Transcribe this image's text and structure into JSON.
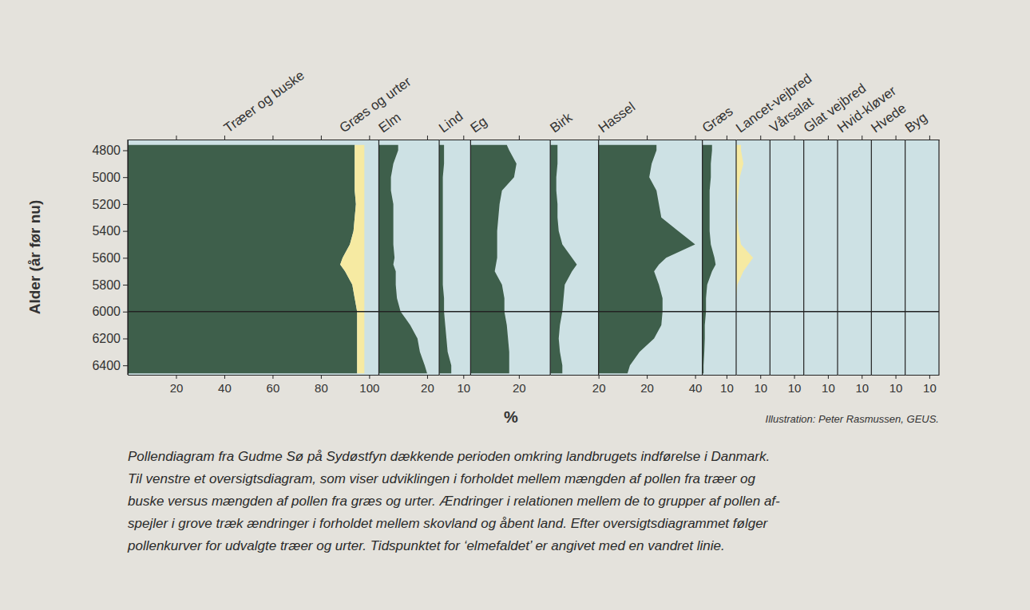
{
  "chart_data": {
    "type": "area",
    "y_label": "Alder (år før nu)",
    "x_label": "%",
    "ylim": [
      4720,
      6470
    ],
    "yticks": [
      4800,
      5000,
      5200,
      5400,
      5600,
      5800,
      6000,
      6200,
      6400
    ],
    "y": [
      4760,
      4800,
      4900,
      5000,
      5100,
      5200,
      5300,
      5400,
      5500,
      5600,
      5650,
      5700,
      5800,
      5900,
      6000,
      6100,
      6200,
      6300,
      6400,
      6460
    ],
    "hline": 6000,
    "credit": "Illustration: Peter Rasmussen, GEUS.",
    "caption": [
      "Pollendiagram fra Gudme Sø på Sydøstfyn dækkende perioden omkring landbrugets indførelse i Danmark.",
      "Til venstre et oversigtsdiagram, som viser udviklingen i forholdet mellem mængden af pollen fra træer og",
      "buske versus mængden af pollen fra græs og urter. Ændringer i relationen mellem de to grupper af pollen af-",
      "spejler i grove træk ændringer i forholdet mellem skovland og åbent land. Efter oversigtsdiagrammet følger",
      "pollenkurver for udvalgte træer og urter. Tidspunktet for ‘elmefaldet’ er angivet med en vandret linie."
    ],
    "panels": [
      {
        "xlim": [
          0,
          104
        ],
        "xticks": [
          20,
          40,
          60,
          80,
          100
        ],
        "stacked": true,
        "series": [
          {
            "name": "Træer og buske",
            "color": "#3e5f4b",
            "values": [
              94,
              94,
              94,
              94,
              94,
              94.5,
              94,
              93.5,
              92,
              89,
              88,
              90,
              93,
              94,
              95,
              95,
              95,
              95,
              95,
              95
            ]
          },
          {
            "name": "Græs og urter",
            "color": "#f6eaa2",
            "values": [
              4,
              4,
              4,
              4,
              4,
              3.5,
              4,
              4.5,
              6,
              9,
              10,
              8,
              5,
              4,
              3,
              3,
              3,
              3,
              3,
              3
            ]
          }
        ]
      },
      {
        "xlim": [
          0,
          25
        ],
        "xticks": [
          20
        ],
        "series": [
          {
            "name": "Elm",
            "color": "#3e5f4b",
            "values": [
              8,
              8,
              6,
              5,
              5,
              6,
              6,
              6,
              6,
              6.5,
              6,
              7,
              7,
              7.5,
              9,
              13,
              16,
              17,
              19,
              20
            ]
          }
        ]
      },
      {
        "xlim": [
          0,
          13
        ],
        "xticks": [
          10
        ],
        "series": [
          {
            "name": "Lind",
            "color": "#3e5f4b",
            "values": [
              2,
              2,
              2,
              1.5,
              1.5,
              1.5,
              1.5,
              1.5,
              1.5,
              1.5,
              1.5,
              1.5,
              1.5,
              2,
              2,
              2.5,
              3,
              3.5,
              5,
              5
            ]
          }
        ]
      },
      {
        "xlim": [
          0,
          33
        ],
        "xticks": [
          20
        ],
        "series": [
          {
            "name": "Eg",
            "color": "#3e5f4b",
            "values": [
              15,
              16,
              19,
              18,
              13,
              12,
              11.5,
              11,
              11,
              11,
              10.5,
              10,
              13,
              14,
              14,
              15,
              15.5,
              16,
              16,
              16
            ]
          }
        ]
      },
      {
        "xlim": [
          0,
          20
        ],
        "xticks": [
          20
        ],
        "series": [
          {
            "name": "Birk",
            "color": "#3e5f4b",
            "values": [
              3,
              3,
              3,
              2.5,
              2.5,
              3,
              3,
              3.5,
              5,
              9,
              11,
              9,
              6,
              5.5,
              5,
              4,
              3.5,
              4,
              5,
              5
            ]
          }
        ]
      },
      {
        "xlim": [
          0,
          43
        ],
        "xticks": [
          20,
          40
        ],
        "series": [
          {
            "name": "Hassel",
            "color": "#3e5f4b",
            "values": [
              24,
              24,
              22,
              21,
              24,
              25,
              26,
              33,
              40,
              28,
              25,
              23,
              25,
              26.5,
              26.5,
              26,
              23,
              17,
              13,
              12
            ]
          }
        ]
      },
      {
        "xlim": [
          0,
          14
        ],
        "xticks": [
          10
        ],
        "series": [
          {
            "name": "Græs",
            "color": "#3e5f4b",
            "values": [
              4,
              4,
              3.5,
              3.5,
              3,
              3,
              3,
              3,
              3.5,
              5,
              5.5,
              4,
              2,
              1.5,
              1.5,
              1,
              1,
              0.8,
              0.5,
              0.5
            ]
          }
        ]
      },
      {
        "xlim": [
          0,
          14
        ],
        "xticks": [
          10
        ],
        "series": [
          {
            "name": "Lancet-vejbred",
            "color": "#f6eaa2",
            "values": [
              2,
              2,
              3,
              1.5,
              1,
              0.5,
              0.5,
              1,
              2,
              7,
              5,
              3,
              0.5,
              0,
              0,
              0,
              0,
              0,
              0,
              0
            ]
          }
        ]
      },
      {
        "xlim": [
          0,
          14
        ],
        "xticks": [
          10
        ],
        "series": [
          {
            "name": "Vårsalat",
            "color": "#f6eaa2",
            "values": [
              0,
              0,
              0,
              0,
              0,
              0,
              0,
              0,
              0,
              0,
              0,
              0,
              0,
              0,
              0,
              0,
              0,
              0,
              0,
              0
            ]
          }
        ]
      },
      {
        "xlim": [
          0,
          14
        ],
        "xticks": [
          10
        ],
        "series": [
          {
            "name": "Glat vejbred",
            "color": "#f6eaa2",
            "values": [
              0,
              0,
              0,
              0,
              0,
              0,
              0,
              0,
              0,
              0,
              0,
              0,
              0,
              0,
              0,
              0,
              0,
              0,
              0,
              0
            ]
          }
        ]
      },
      {
        "xlim": [
          0,
          14
        ],
        "xticks": [
          10
        ],
        "series": [
          {
            "name": "Hvid-kløver",
            "color": "#f6eaa2",
            "values": [
              0,
              0,
              0,
              0,
              0,
              0,
              0,
              0,
              0,
              0,
              0,
              0,
              0,
              0,
              0,
              0,
              0,
              0,
              0,
              0
            ]
          }
        ]
      },
      {
        "xlim": [
          0,
          14
        ],
        "xticks": [
          10
        ],
        "series": [
          {
            "name": "Hvede",
            "color": "#f6eaa2",
            "values": [
              0,
              0,
              0,
              0,
              0,
              0,
              0,
              0,
              0,
              0,
              0,
              0,
              0,
              0,
              0,
              0,
              0,
              0,
              0,
              0
            ]
          }
        ]
      },
      {
        "xlim": [
          0,
          14
        ],
        "xticks": [
          10
        ],
        "series": [
          {
            "name": "Byg",
            "color": "#f6eaa2",
            "values": [
              0,
              0,
              0,
              0,
              0,
              0,
              0,
              0,
              0,
              0,
              0,
              0,
              0,
              0,
              0,
              0,
              0,
              0,
              0,
              0
            ]
          }
        ]
      }
    ]
  }
}
